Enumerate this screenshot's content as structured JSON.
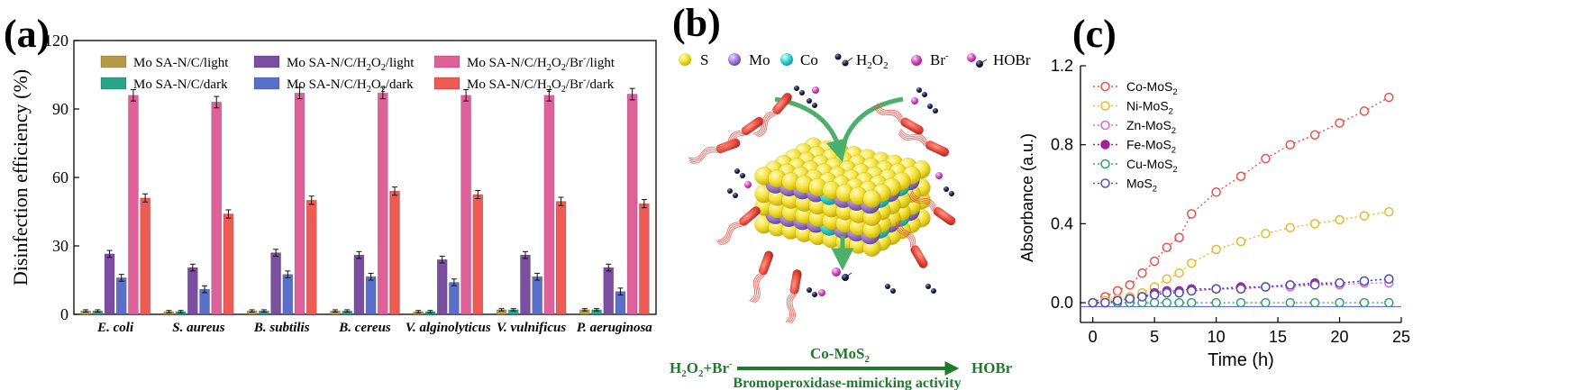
{
  "panels": {
    "a": "(a)",
    "b": "(b)",
    "c": "(c)"
  },
  "chart_data": [
    {
      "type": "bar",
      "panel": "(a)",
      "ylabel": "Disinfection efficiency (%)",
      "xlabel": "",
      "ylim": [
        0,
        120
      ],
      "yticks": [
        0,
        30,
        60,
        90,
        120
      ],
      "categories": [
        "E. coli",
        "S. aureus",
        "B. subtilis",
        "B. cereus",
        "V. alginolyticus",
        "V. vulnificus",
        "P. aeruginosa"
      ],
      "legend_position": "top",
      "grid": false,
      "series": [
        {
          "name": "Mo SA-N/C/light",
          "color": "#b59a4a",
          "values": [
            1.5,
            1.2,
            1.5,
            1.5,
            1.2,
            2.0,
            2.0
          ],
          "errors": [
            0.5,
            0.5,
            0.5,
            0.5,
            0.5,
            0.5,
            0.5
          ]
        },
        {
          "name": "Mo SA-N/C/dark",
          "color": "#2aa38a",
          "values": [
            1.5,
            1.2,
            1.5,
            1.5,
            1.2,
            2.0,
            2.0
          ],
          "errors": [
            0.5,
            0.5,
            0.5,
            0.5,
            0.5,
            0.5,
            0.5
          ]
        },
        {
          "name": "Mo SA-N/C/H2O2/light",
          "color": "#7a4fa0",
          "values": [
            26.5,
            20.5,
            27,
            26,
            24,
            26,
            20.5
          ],
          "errors": [
            1.5,
            1.5,
            1.5,
            1.5,
            1.5,
            1.5,
            1.5
          ]
        },
        {
          "name": "Mo SA-N/C/H2O2/dark",
          "color": "#5a6fc8",
          "values": [
            16,
            11,
            17.5,
            16.5,
            14,
            16.5,
            10
          ],
          "errors": [
            1.5,
            1.5,
            1.5,
            1.5,
            1.5,
            1.5,
            1.5
          ]
        },
        {
          "name": "Mo SA-N/C/H2O2/Br-/light",
          "color": "#e0609a",
          "values": [
            96,
            93,
            97,
            97,
            96,
            96,
            96.5
          ],
          "errors": [
            2.5,
            2.5,
            2.5,
            2.5,
            2.5,
            2.5,
            2.5
          ]
        },
        {
          "name": "Mo SA-N/C/H2O2/Br-/dark",
          "color": "#ee5b55",
          "values": [
            51,
            44,
            50,
            54,
            52.5,
            49.5,
            48.5
          ],
          "errors": [
            1.8,
            1.8,
            1.8,
            1.8,
            1.8,
            1.8,
            1.8
          ]
        }
      ],
      "legend_labels": [
        {
          "base": "Mo SA-N/C/light",
          "parts": [
            [
              "Mo SA-N/C/light",
              ""
            ]
          ]
        },
        {
          "base": "Mo SA-N/C/dark",
          "parts": [
            [
              "Mo SA-N/C/dark",
              ""
            ]
          ]
        },
        {
          "base": "Mo SA-N/C/H2O2/light",
          "parts": [
            [
              "Mo SA-N/C/H",
              ""
            ],
            [
              "2",
              "sub"
            ],
            [
              "O",
              ""
            ],
            [
              "2",
              "sub"
            ],
            [
              "/light",
              ""
            ]
          ]
        },
        {
          "base": "Mo SA-N/C/H2O2/dark",
          "parts": [
            [
              "Mo SA-N/C/H",
              ""
            ],
            [
              "2",
              "sub"
            ],
            [
              "O",
              ""
            ],
            [
              "2",
              "sub"
            ],
            [
              "/dark",
              ""
            ]
          ]
        },
        {
          "base": "Mo SA-N/C/H2O2/Br-/light",
          "parts": [
            [
              "Mo SA-N/C/H",
              ""
            ],
            [
              "2",
              "sub"
            ],
            [
              "O",
              ""
            ],
            [
              "2",
              "sub"
            ],
            [
              "/Br",
              ""
            ],
            [
              "-",
              "sup"
            ],
            [
              "/light",
              ""
            ]
          ]
        },
        {
          "base": "Mo SA-N/C/H2O2/Br-/dark",
          "parts": [
            [
              "Mo SA-N/C/H",
              ""
            ],
            [
              "2",
              "sub"
            ],
            [
              "O",
              ""
            ],
            [
              "2",
              "sub"
            ],
            [
              "/Br",
              ""
            ],
            [
              "-",
              "sup"
            ],
            [
              "/dark",
              ""
            ]
          ]
        }
      ]
    },
    {
      "type": "line",
      "panel": "(c)",
      "xlabel": "Time (h)",
      "ylabel": "Absorbance (a.u.)",
      "xlim": [
        -1,
        25
      ],
      "ylim": [
        -0.1,
        1.2
      ],
      "xticks": [
        0,
        5,
        10,
        15,
        20,
        25
      ],
      "yticks": [
        0.0,
        0.4,
        0.8,
        1.2
      ],
      "legend_position": "top-left",
      "grid": false,
      "x": [
        0,
        1,
        2,
        3,
        4,
        5,
        6,
        7,
        8,
        10,
        12,
        14,
        16,
        18,
        20,
        22,
        24
      ],
      "series": [
        {
          "name": "Co-MoS2",
          "color": "#e8504a",
          "values": [
            0,
            0.03,
            0.06,
            0.09,
            0.15,
            0.21,
            0.28,
            0.33,
            0.45,
            0.56,
            0.64,
            0.73,
            0.8,
            0.85,
            0.91,
            0.97,
            1.04
          ]
        },
        {
          "name": "Ni-MoS2",
          "color": "#e8b830",
          "values": [
            0,
            0.01,
            0.02,
            0.03,
            0.05,
            0.08,
            0.12,
            0.15,
            0.2,
            0.27,
            0.31,
            0.35,
            0.38,
            0.4,
            0.42,
            0.44,
            0.46
          ]
        },
        {
          "name": "Zn-MoS2",
          "color": "#d070d0",
          "values": [
            0,
            0.0,
            0.01,
            0.02,
            0.03,
            0.04,
            0.05,
            0.05,
            0.06,
            0.07,
            0.07,
            0.08,
            0.08,
            0.09,
            0.09,
            0.1,
            0.1
          ]
        },
        {
          "name": "Fe-MoS2",
          "color": "#a0209a",
          "values": [
            0,
            0.0,
            0.01,
            0.02,
            0.03,
            0.05,
            0.06,
            0.06,
            0.07,
            0.07,
            0.08,
            0.08,
            0.09,
            0.1,
            0.1,
            0.11,
            0.12
          ]
        },
        {
          "name": "Cu-MoS2",
          "color": "#30a070",
          "values": [
            0,
            0,
            0,
            0,
            0,
            0,
            0,
            0,
            0,
            0,
            0,
            0,
            0,
            0,
            0,
            0,
            0
          ]
        },
        {
          "name": "MoS2",
          "color": "#5050b0",
          "values": [
            0,
            0.0,
            0.01,
            0.02,
            0.03,
            0.04,
            0.05,
            0.05,
            0.06,
            0.07,
            0.07,
            0.08,
            0.09,
            0.09,
            0.1,
            0.11,
            0.12
          ]
        }
      ],
      "legend_labels": [
        {
          "base": "Co-MoS2",
          "parts": [
            [
              "Co-MoS",
              ""
            ],
            [
              "2",
              "sub"
            ]
          ]
        },
        {
          "base": "Ni-MoS2",
          "parts": [
            [
              "Ni-MoS",
              ""
            ],
            [
              "2",
              "sub"
            ]
          ]
        },
        {
          "base": "Zn-MoS2",
          "parts": [
            [
              "Zn-MoS",
              ""
            ],
            [
              "2",
              "sub"
            ]
          ]
        },
        {
          "base": "Fe-MoS2",
          "parts": [
            [
              "Fe-MoS",
              ""
            ],
            [
              "2",
              "sub"
            ]
          ]
        },
        {
          "base": "Cu-MoS2",
          "parts": [
            [
              "Cu-MoS",
              ""
            ],
            [
              "2",
              "sub"
            ]
          ]
        },
        {
          "base": "MoS2",
          "parts": [
            [
              "MoS",
              ""
            ],
            [
              "2",
              "sub"
            ]
          ]
        }
      ]
    }
  ],
  "diagram_b": {
    "legend": [
      {
        "symbol": "S",
        "color": "#f2e23c"
      },
      {
        "symbol": "Mo",
        "color": "#a584d6"
      },
      {
        "symbol": "Co",
        "color": "#3fd6d2"
      },
      {
        "symbol": "H2O2",
        "color": "#1b1f4d"
      },
      {
        "symbol": "Br-",
        "color": "#d84fc4"
      },
      {
        "symbol": "HOBr",
        "color": "#d84fc4"
      }
    ],
    "reaction": {
      "left": "H2O2+Br-",
      "catalyst": "Co-MoS2",
      "right": "HOBr",
      "activity": "Bromoperoxidase-mimicking activity"
    }
  }
}
